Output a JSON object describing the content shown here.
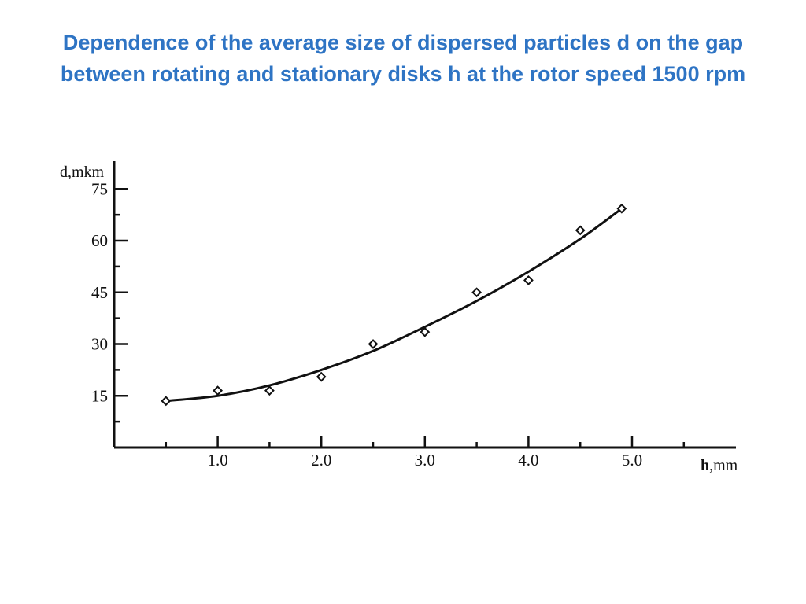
{
  "slide": {
    "title": "Dependence of the average size of dispersed particles d on the gap between rotating and stationary disks h at the rotor speed 1500 rpm",
    "title_color": "#2E74C4"
  },
  "chart_data": {
    "type": "scatter",
    "title": "Dependence of the average size of dispersed particles d on the gap between rotating and stationary disks h at the rotor speed 1500 rpm",
    "xlabel_bold": "h",
    "xlabel_rest": ",mm",
    "ylabel": "d,mkm",
    "xlim": [
      0,
      6.0
    ],
    "ylim": [
      0,
      76
    ],
    "x_ticks": [
      1.0,
      2.0,
      3.0,
      4.0,
      5.0
    ],
    "x_tick_labels": [
      "1.0",
      "2.0",
      "3.0",
      "4.0",
      "5.0"
    ],
    "y_ticks": [
      15,
      30,
      45,
      60,
      75
    ],
    "y_tick_labels": [
      "15",
      "30",
      "45",
      "60",
      "75"
    ],
    "grid": false,
    "series": [
      {
        "marker": "diamond",
        "x": [
          0.5,
          1.0,
          1.5,
          2.0,
          2.5,
          3.0,
          3.5,
          4.0,
          4.5,
          4.9
        ],
        "y": [
          13.5,
          16.5,
          16.5,
          20.5,
          30.0,
          33.5,
          45.0,
          48.5,
          63.0,
          69.3
        ]
      }
    ],
    "fit_curve": {
      "x": [
        0.5,
        1.0,
        1.5,
        2.0,
        2.5,
        3.0,
        3.5,
        4.0,
        4.5,
        4.9
      ],
      "y": [
        13.5,
        15.0,
        18.0,
        22.5,
        28.0,
        35.0,
        42.5,
        51.0,
        60.5,
        69.3
      ]
    }
  }
}
